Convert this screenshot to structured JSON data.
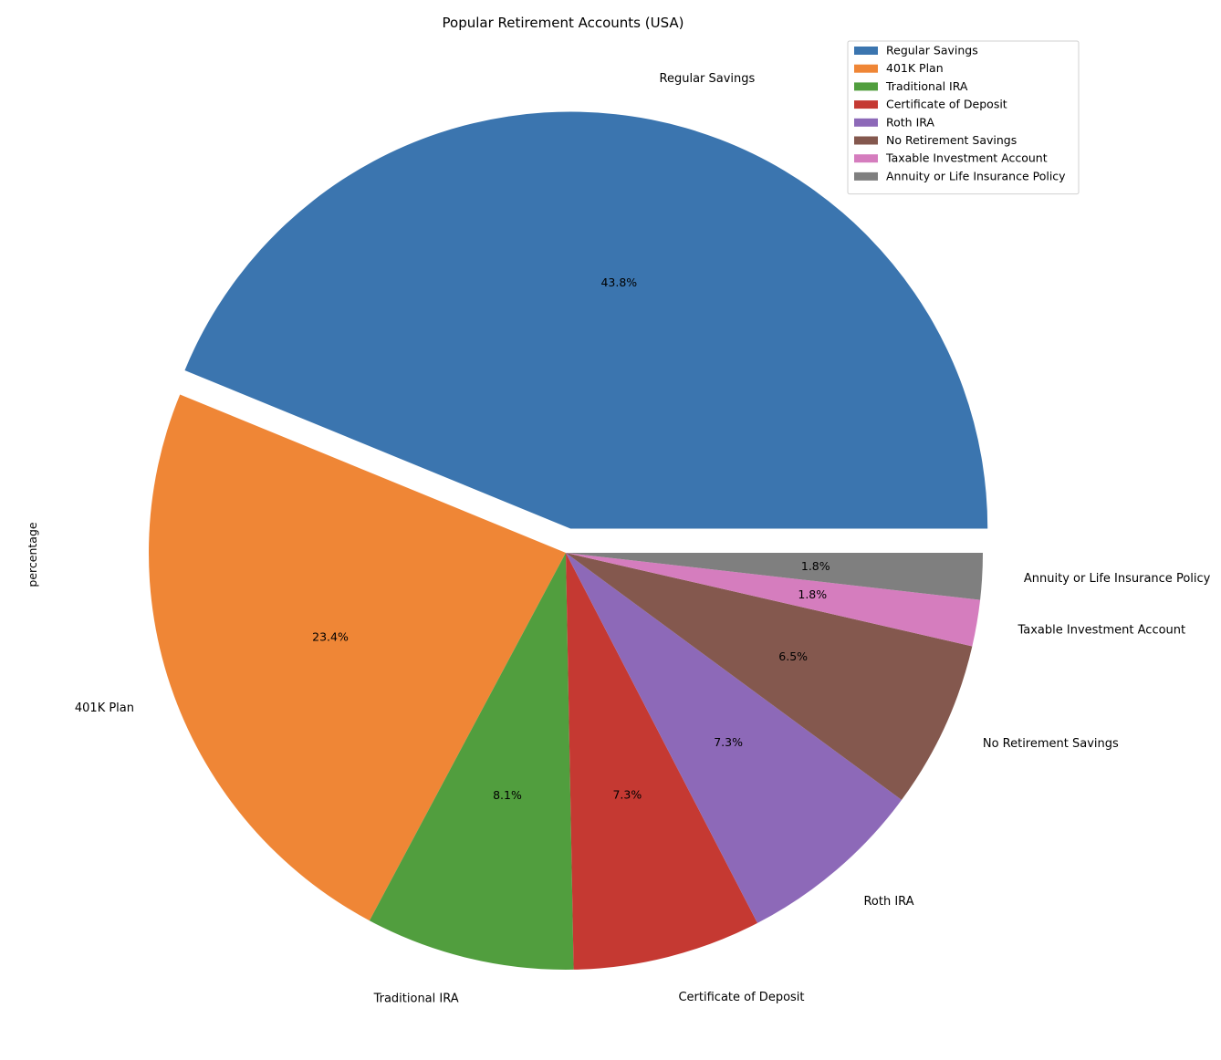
{
  "chart_data": {
    "type": "pie",
    "title": "Popular Retirement Accounts (USA)",
    "ylabel": "percentage",
    "legend_position": "top-right",
    "start_angle_deg": 0,
    "direction": "counterclockwise",
    "slices": [
      {
        "label": "Regular Savings",
        "value": 43.8,
        "pct_label": "43.8%",
        "color": "#3b75af",
        "exploded": true
      },
      {
        "label": "401K Plan",
        "value": 23.4,
        "pct_label": "23.4%",
        "color": "#ef8636",
        "exploded": false
      },
      {
        "label": "Traditional IRA",
        "value": 8.1,
        "pct_label": "8.1%",
        "color": "#519e3e",
        "exploded": false
      },
      {
        "label": "Certificate of Deposit",
        "value": 7.3,
        "pct_label": "7.3%",
        "color": "#c53932",
        "exploded": false
      },
      {
        "label": "Roth IRA",
        "value": 7.3,
        "pct_label": "7.3%",
        "color": "#8d69b8",
        "exploded": false
      },
      {
        "label": "No Retirement Savings",
        "value": 6.5,
        "pct_label": "6.5%",
        "color": "#84584e",
        "exploded": false
      },
      {
        "label": "Taxable Investment Account",
        "value": 1.8,
        "pct_label": "1.8%",
        "color": "#d57dbe",
        "exploded": false
      },
      {
        "label": "Annuity or Life Insurance Policy",
        "value": 1.8,
        "pct_label": "1.8%",
        "color": "#7f7f7f",
        "exploded": false
      }
    ]
  }
}
